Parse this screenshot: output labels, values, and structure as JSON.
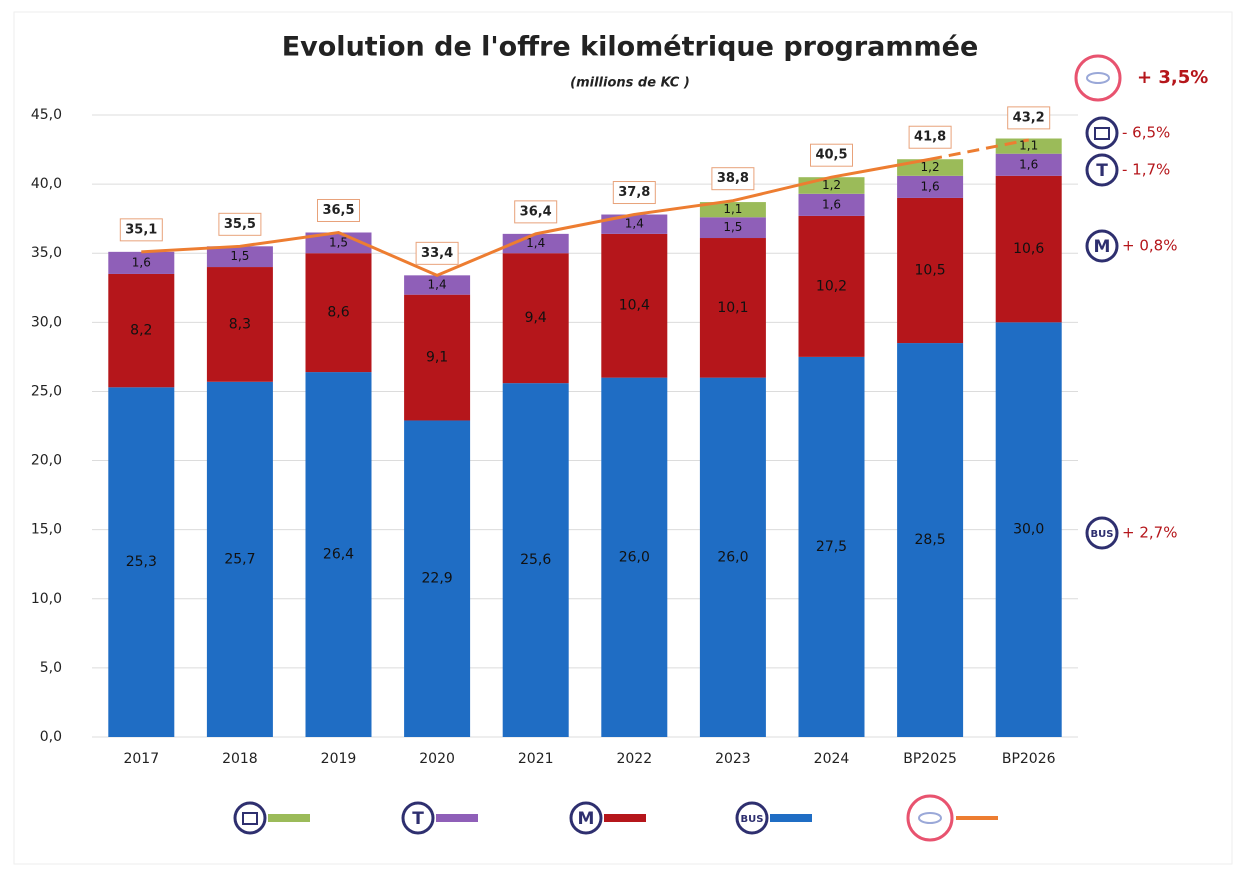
{
  "chart_data": {
    "type": "bar",
    "title": "Evolution de l'offre kilométrique programmée",
    "subtitle": "(millions de KC )",
    "categories": [
      "2017",
      "2018",
      "2019",
      "2020",
      "2021",
      "2022",
      "2023",
      "2024",
      "BP2025",
      "BP2026"
    ],
    "stacked": true,
    "grid": true,
    "ylim": [
      0,
      45
    ],
    "yticks": [
      {
        "value": 0,
        "label": "0,0"
      },
      {
        "value": 5,
        "label": "5,0"
      },
      {
        "value": 10,
        "label": "10,0"
      },
      {
        "value": 15,
        "label": "15,0"
      },
      {
        "value": 20,
        "label": "20,0"
      },
      {
        "value": 25,
        "label": "25,0"
      },
      {
        "value": 30,
        "label": "30,0"
      },
      {
        "value": 35,
        "label": "35,0"
      },
      {
        "value": 40,
        "label": "40,0"
      },
      {
        "value": 45,
        "label": "45,0"
      }
    ],
    "series": [
      {
        "name": "BUS",
        "color": "#1f6dc4",
        "change": "+ 2,7%",
        "values": [
          25.3,
          25.7,
          26.4,
          22.9,
          25.6,
          26.0,
          26.0,
          27.5,
          28.5,
          30.0
        ],
        "value_labels": [
          "25,3",
          "25,7",
          "26,4",
          "22,9",
          "25,6",
          "26,0",
          "26,0",
          "27,5",
          "28,5",
          "30,0"
        ]
      },
      {
        "name": "M",
        "color": "#b5161b",
        "change": "+ 0,8%",
        "values": [
          8.2,
          8.3,
          8.6,
          9.1,
          9.4,
          10.4,
          10.1,
          10.2,
          10.5,
          10.6
        ],
        "value_labels": [
          "8,2",
          "8,3",
          "8,6",
          "9,1",
          "9,4",
          "10,4",
          "10,1",
          "10,2",
          "10,5",
          "10,6"
        ]
      },
      {
        "name": "T",
        "color": "#8f5fb8",
        "change": "- 1,7%",
        "values": [
          1.6,
          1.5,
          1.5,
          1.4,
          1.4,
          1.4,
          1.5,
          1.6,
          1.6,
          1.6
        ],
        "value_labels": [
          "1,6",
          "1,5",
          "1,5",
          "1,4",
          "1,4",
          "1,4",
          "1,5",
          "1,6",
          "1,6",
          "1,6"
        ]
      },
      {
        "color": "#9bbb59",
        "change": "- 6,5%",
        "values": [
          null,
          null,
          null,
          null,
          null,
          null,
          1.1,
          1.2,
          1.2,
          1.1
        ],
        "value_labels": [
          null,
          null,
          null,
          null,
          null,
          null,
          "1,1",
          "1,2",
          "1,2",
          "1,1"
        ]
      }
    ],
    "total": {
      "color": "#ed7d31",
      "change": "+ 3,5%",
      "dash_last_segment": true,
      "values": [
        35.1,
        35.5,
        36.5,
        33.4,
        36.4,
        37.8,
        38.8,
        40.5,
        41.8,
        43.2
      ],
      "value_labels": [
        "35,1",
        "35,5",
        "36,5",
        "33,4",
        "36,4",
        "37,8",
        "38,8",
        "40,5",
        "41,8",
        "43,2"
      ]
    }
  }
}
